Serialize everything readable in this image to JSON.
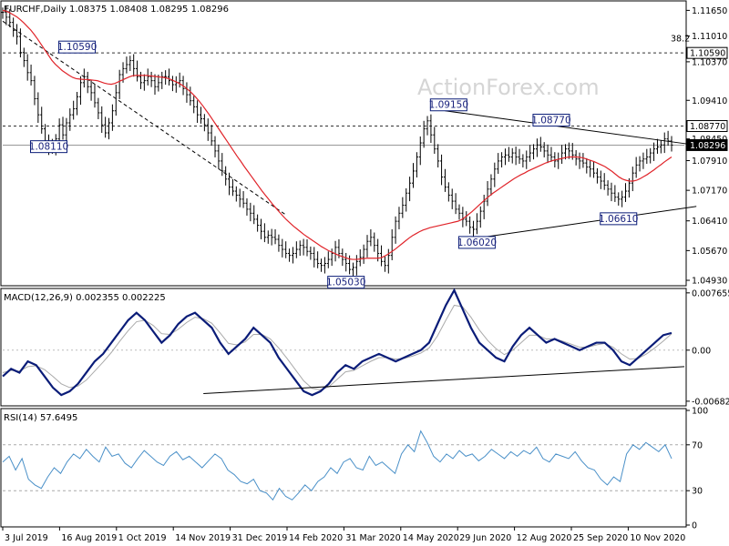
{
  "header": {
    "symbol_line": "EURCHF,Daily  1.08375 1.08408 1.08295 1.08296"
  },
  "watermark": "ActionForex.com",
  "chart_data": [
    {
      "type": "candlestick",
      "title": "EURCHF,Daily",
      "ohlc": {
        "open": 1.08375,
        "high": 1.08408,
        "low": 1.08295,
        "close": 1.08296
      },
      "ylim": [
        1.0484,
        1.1184
      ],
      "y_ticks": [
        "1.11650",
        "1.11010",
        "1.10370",
        "1.09410",
        "1.08450",
        "1.07910",
        "1.07170",
        "1.06410",
        "1.05670",
        "1.04930"
      ],
      "current_price_label": "1.08296",
      "fib_label": "38.2",
      "horizontal_levels": [
        {
          "label": "1.10590",
          "value": 1.1059,
          "style": "dashed"
        },
        {
          "label": "1.08770",
          "value": 1.0877,
          "style": "dashed"
        },
        {
          "label": "1.08296",
          "value": 1.08296,
          "style": "solid"
        }
      ],
      "annotations": [
        {
          "label": "1.10590",
          "value": 1.1059,
          "x": 21
        },
        {
          "label": "1.08110",
          "value": 1.0811,
          "x": 13
        },
        {
          "label": "1.05030",
          "value": 1.0503,
          "x": 97
        },
        {
          "label": "1.09150",
          "value": 1.0915,
          "x": 126
        },
        {
          "label": "1.06020",
          "value": 1.0602,
          "x": 134
        },
        {
          "label": "1.08770",
          "value": 1.0877,
          "x": 155
        },
        {
          "label": "1.06610",
          "value": 1.0661,
          "x": 174
        }
      ],
      "trendlines": [
        {
          "from": [
            0,
            1.1138
          ],
          "to": [
            80,
            1.0656
          ],
          "style": "dashed"
        },
        {
          "from": [
            125,
            1.0915
          ],
          "to": [
            193,
            1.0833
          ],
          "style": "solid"
        },
        {
          "from": [
            134,
            1.0598
          ],
          "to": [
            196,
            1.0677
          ],
          "style": "solid"
        }
      ],
      "close_series": [
        1.116,
        1.1148,
        1.1135,
        1.1115,
        1.11,
        1.106,
        1.104,
        1.101,
        1.099,
        1.0945,
        1.0905,
        1.087,
        1.084,
        1.0825,
        1.082,
        1.0845,
        1.088,
        1.0855,
        1.0885,
        1.0905,
        1.092,
        1.095,
        1.0985,
        1.1,
        1.0975,
        1.096,
        1.0935,
        1.091,
        1.088,
        1.086,
        1.0885,
        1.0915,
        1.096,
        1.1005,
        1.102,
        1.103,
        1.104,
        1.102,
        1.1,
        1.0985,
        1.099,
        1.1,
        1.099,
        1.0975,
        1.0985,
        1.1,
        1.1,
        1.099,
        1.098,
        1.0985,
        1.099,
        1.097,
        1.0955,
        1.094,
        1.0925,
        1.0905,
        1.0895,
        1.088,
        1.086,
        1.084,
        1.0815,
        1.079,
        1.0765,
        1.0745,
        1.0725,
        1.0715,
        1.0705,
        1.0695,
        1.0685,
        1.067,
        1.066,
        1.0645,
        1.063,
        1.0615,
        1.06,
        1.0605,
        1.06,
        1.0595,
        1.058,
        1.057,
        1.056,
        1.0555,
        1.056,
        1.057,
        1.058,
        1.0575,
        1.0565,
        1.056,
        1.0545,
        1.0535,
        1.053,
        1.0535,
        1.0545,
        1.056,
        1.0575,
        1.056,
        1.0545,
        1.0535,
        1.052,
        1.0525,
        1.054,
        1.055,
        1.057,
        1.059,
        1.06,
        1.058,
        1.056,
        1.054,
        1.053,
        1.0555,
        1.06,
        1.064,
        1.066,
        1.068,
        1.071,
        1.0735,
        1.0765,
        1.08,
        1.0835,
        1.087,
        1.089,
        1.0855,
        1.082,
        1.079,
        1.075,
        1.0725,
        1.0705,
        1.069,
        1.067,
        1.066,
        1.0645,
        1.064,
        1.0625,
        1.062,
        1.064,
        1.0665,
        1.069,
        1.072,
        1.0745,
        1.077,
        1.079,
        1.08,
        1.0805,
        1.08,
        1.081,
        1.08,
        1.0795,
        1.079,
        1.08,
        1.081,
        1.082,
        1.083,
        1.0825,
        1.0815,
        1.0805,
        1.08,
        1.079,
        1.0795,
        1.081,
        1.082,
        1.0815,
        1.0805,
        1.0795,
        1.079,
        1.0785,
        1.0775,
        1.077,
        1.076,
        1.075,
        1.074,
        1.073,
        1.072,
        1.071,
        1.07,
        1.0695,
        1.07,
        1.0715,
        1.0735,
        1.076,
        1.078,
        1.079,
        1.0795,
        1.08,
        1.081,
        1.082,
        1.0825,
        1.083,
        1.0845,
        1.084,
        1.08296
      ],
      "ma_series": [
        1.1165,
        1.1163,
        1.1159,
        1.1154,
        1.1149,
        1.1142,
        1.1134,
        1.1125,
        1.1116,
        1.1105,
        1.1093,
        1.108,
        1.1067,
        1.1054,
        1.1041,
        1.1031,
        1.1023,
        1.1015,
        1.1009,
        1.1003,
        1.0998,
        1.0995,
        1.0994,
        1.0993,
        1.0993,
        1.0992,
        1.0991,
        1.099,
        1.0987,
        1.0984,
        1.0982,
        1.0981,
        1.0983,
        1.0987,
        1.0991,
        1.0995,
        1.0999,
        1.1002,
        1.1003,
        1.1003,
        1.1003,
        1.1003,
        1.1002,
        1.1001,
        1.1,
        1.0999,
        1.0998,
        1.0996,
        1.0993,
        1.0989,
        1.0985,
        1.098,
        1.0974,
        1.0967,
        1.0959,
        1.095,
        1.094,
        1.0929,
        1.0917,
        1.0905,
        1.0892,
        1.0879,
        1.0866,
        1.0853,
        1.084,
        1.0827,
        1.0814,
        1.0801,
        1.0789,
        1.0776,
        1.0764,
        1.0752,
        1.074,
        1.0728,
        1.0716,
        1.0705,
        1.0694,
        1.0683,
        1.0673,
        1.0663,
        1.0653,
        1.0644,
        1.0636,
        1.0628,
        1.0621,
        1.0614,
        1.0607,
        1.0601,
        1.0595,
        1.0589,
        1.0583,
        1.0577,
        1.0572,
        1.0567,
        1.0563,
        1.0559,
        1.0555,
        1.0552,
        1.0549,
        1.0546,
        1.0545,
        1.0545,
        1.0546,
        1.0547,
        1.0548,
        1.0548,
        1.0548,
        1.0548,
        1.0549,
        1.0553,
        1.0558,
        1.0564,
        1.057,
        1.0577,
        1.0584,
        1.0591,
        1.0598,
        1.0604,
        1.0609,
        1.0614,
        1.0618,
        1.0621,
        1.0624,
        1.0626,
        1.0628,
        1.063,
        1.0632,
        1.0634,
        1.0636,
        1.0638,
        1.064,
        1.0644,
        1.065,
        1.0657,
        1.0664,
        1.0672,
        1.068,
        1.0688,
        1.0696,
        1.0703,
        1.071,
        1.0716,
        1.0722,
        1.0728,
        1.0734,
        1.074,
        1.0746,
        1.0751,
        1.0756,
        1.076,
        1.0765,
        1.0769,
        1.0773,
        1.0777,
        1.0781,
        1.0785,
        1.0788,
        1.0791,
        1.0793,
        1.0795,
        1.0797,
        1.0799,
        1.08,
        1.08,
        1.08,
        1.0799,
        1.0797,
        1.0794,
        1.0791,
        1.0788,
        1.0784,
        1.078,
        1.0776,
        1.077,
        1.0764,
        1.0757,
        1.075,
        1.0745,
        1.0742,
        1.074,
        1.074,
        1.0742,
        1.0746,
        1.0751,
        1.0756,
        1.0762,
        1.0768,
        1.0775,
        1.0781,
        1.0788,
        1.0794,
        1.08
      ]
    },
    {
      "type": "line",
      "title": "MACD(12,26,9) 0.002355 0.002225",
      "ylim": [
        -0.0072,
        0.008
      ],
      "y_ticks": [
        "0.007655",
        "0.00",
        "-0.006822"
      ],
      "zero_label": "0.00",
      "macd_series": [
        -0.0035,
        -0.0025,
        -0.003,
        -0.0015,
        -0.002,
        -0.0035,
        -0.005,
        -0.006,
        -0.0055,
        -0.0045,
        -0.003,
        -0.0015,
        -0.0005,
        0.001,
        0.0025,
        0.004,
        0.005,
        0.004,
        0.0025,
        0.001,
        0.002,
        0.0035,
        0.0045,
        0.005,
        0.004,
        0.003,
        0.001,
        -0.0005,
        0.0005,
        0.0015,
        0.003,
        0.002,
        0.001,
        -0.001,
        -0.0025,
        -0.004,
        -0.0055,
        -0.006,
        -0.0055,
        -0.0045,
        -0.003,
        -0.002,
        -0.0025,
        -0.0015,
        -0.001,
        -0.0005,
        -0.001,
        -0.0015,
        -0.001,
        -0.0005,
        0.0,
        0.001,
        0.0035,
        0.006,
        0.008,
        0.0055,
        0.003,
        0.001,
        0.0,
        -0.001,
        -0.0015,
        0.0005,
        0.002,
        0.003,
        0.002,
        0.001,
        0.0015,
        0.001,
        0.0005,
        0.0,
        0.0005,
        0.001,
        0.001,
        0.0,
        -0.0015,
        -0.002,
        -0.001,
        0.0,
        0.001,
        0.002,
        0.0023
      ],
      "signal_series": [
        -0.003,
        -0.0027,
        -0.0028,
        -0.0022,
        -0.0021,
        -0.0026,
        -0.0035,
        -0.0045,
        -0.005,
        -0.0048,
        -0.004,
        -0.0028,
        -0.0016,
        -0.0003,
        0.0012,
        0.0026,
        0.0038,
        0.004,
        0.0033,
        0.0022,
        0.0021,
        0.0028,
        0.0037,
        0.0044,
        0.0042,
        0.0036,
        0.0023,
        0.0009,
        0.0007,
        0.0011,
        0.0021,
        0.0021,
        0.0015,
        0.0003,
        -0.0011,
        -0.0026,
        -0.0041,
        -0.0051,
        -0.0053,
        -0.0049,
        -0.0039,
        -0.0029,
        -0.0027,
        -0.0021,
        -0.0015,
        -0.001,
        -0.001,
        -0.0012,
        -0.0011,
        -0.0008,
        -0.0004,
        0.0003,
        0.0019,
        0.004,
        0.006,
        0.0058,
        0.0044,
        0.0027,
        0.0013,
        0.0002,
        -0.0006,
        0.0,
        0.001,
        0.002,
        0.002,
        0.0015,
        0.0015,
        0.0012,
        0.0008,
        0.0004,
        0.0004,
        0.0007,
        0.0009,
        0.0004,
        -0.0005,
        -0.0012,
        -0.0011,
        -0.0005,
        0.0003,
        0.0012,
        0.0022
      ],
      "trendline": {
        "from": [
          24,
          -0.0058
        ],
        "to": [
          80,
          -0.0022
        ]
      }
    },
    {
      "type": "line",
      "title": "RSI(14) 57.6495",
      "ylim": [
        0,
        100
      ],
      "y_ticks": [
        "100",
        "70",
        "30",
        "0"
      ],
      "levels": [
        70,
        30
      ],
      "rsi_series": [
        55,
        60,
        48,
        58,
        40,
        35,
        32,
        42,
        50,
        45,
        55,
        62,
        58,
        66,
        60,
        55,
        68,
        60,
        62,
        54,
        50,
        58,
        65,
        60,
        55,
        52,
        60,
        64,
        57,
        60,
        55,
        50,
        56,
        62,
        58,
        48,
        44,
        38,
        36,
        40,
        30,
        28,
        22,
        32,
        25,
        22,
        28,
        35,
        30,
        38,
        42,
        50,
        45,
        55,
        58,
        50,
        48,
        60,
        52,
        55,
        50,
        45,
        62,
        70,
        64,
        82,
        72,
        60,
        55,
        62,
        58,
        65,
        60,
        62,
        56,
        60,
        66,
        62,
        58,
        64,
        60,
        65,
        62,
        68,
        58,
        55,
        62,
        60,
        58,
        64,
        56,
        50,
        48,
        40,
        35,
        42,
        38,
        62,
        70,
        66,
        72,
        68,
        64,
        70,
        58
      ]
    }
  ],
  "x_axis": {
    "labels": [
      "3 Jul 2019",
      "16 Aug 2019",
      "1 Oct 2019",
      "14 Nov 2019",
      "31 Dec 2019",
      "14 Feb 2020",
      "31 Mar 2020",
      "14 May 2020",
      "29 Jun 2020",
      "12 Aug 2020",
      "25 Sep 2020",
      "10 Nov 2020"
    ]
  },
  "colors": {
    "price": "#000000",
    "ma": "#e0242a",
    "macd": "#0a1c78",
    "signal": "#aaaaaa",
    "rsi": "#4a90c8",
    "box_border": "#0a1c78",
    "box_text": "#0a1c78"
  }
}
